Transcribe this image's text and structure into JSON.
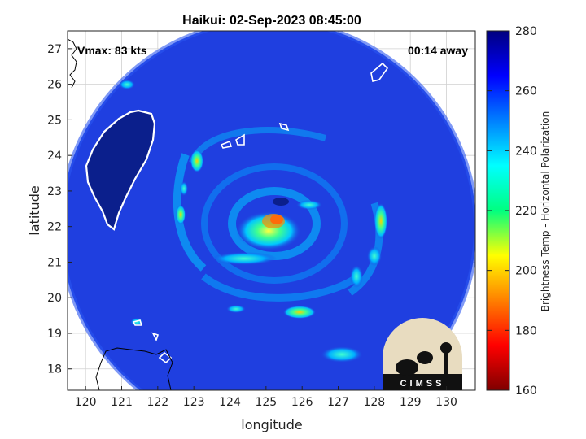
{
  "title": "Haikui: 02-Sep-2023 08:45:00",
  "vmax_text": "Vmax: 83 kts",
  "time_away_text": "00:14 away",
  "xlabel": "longitude",
  "ylabel": "latitude",
  "colorbar_label": "Brightness Temp - Horizontal Polarization",
  "logo_text": "CIMSS",
  "x_ticks": [
    "120",
    "121",
    "122",
    "123",
    "124",
    "125",
    "126",
    "127",
    "128",
    "129",
    "130"
  ],
  "y_ticks": [
    "18",
    "19",
    "20",
    "21",
    "22",
    "23",
    "24",
    "25",
    "26",
    "27"
  ],
  "colorbar_ticks": [
    "160",
    "180",
    "200",
    "220",
    "240",
    "260",
    "280"
  ],
  "chart_data": {
    "type": "heatmap",
    "xlim": [
      119.5,
      130.8
    ],
    "ylim": [
      17.4,
      27.5
    ],
    "clim": [
      160,
      280
    ],
    "colormap": "jet",
    "grid": true,
    "storm_center": [
      125.0,
      22.0
    ],
    "swath_radius_deg": 5.1
  },
  "colors": {
    "background": "#ffffff",
    "swath_base": "#1f3fe0",
    "land_dark": "#0b1f8c",
    "coastline": "#ffffff"
  }
}
